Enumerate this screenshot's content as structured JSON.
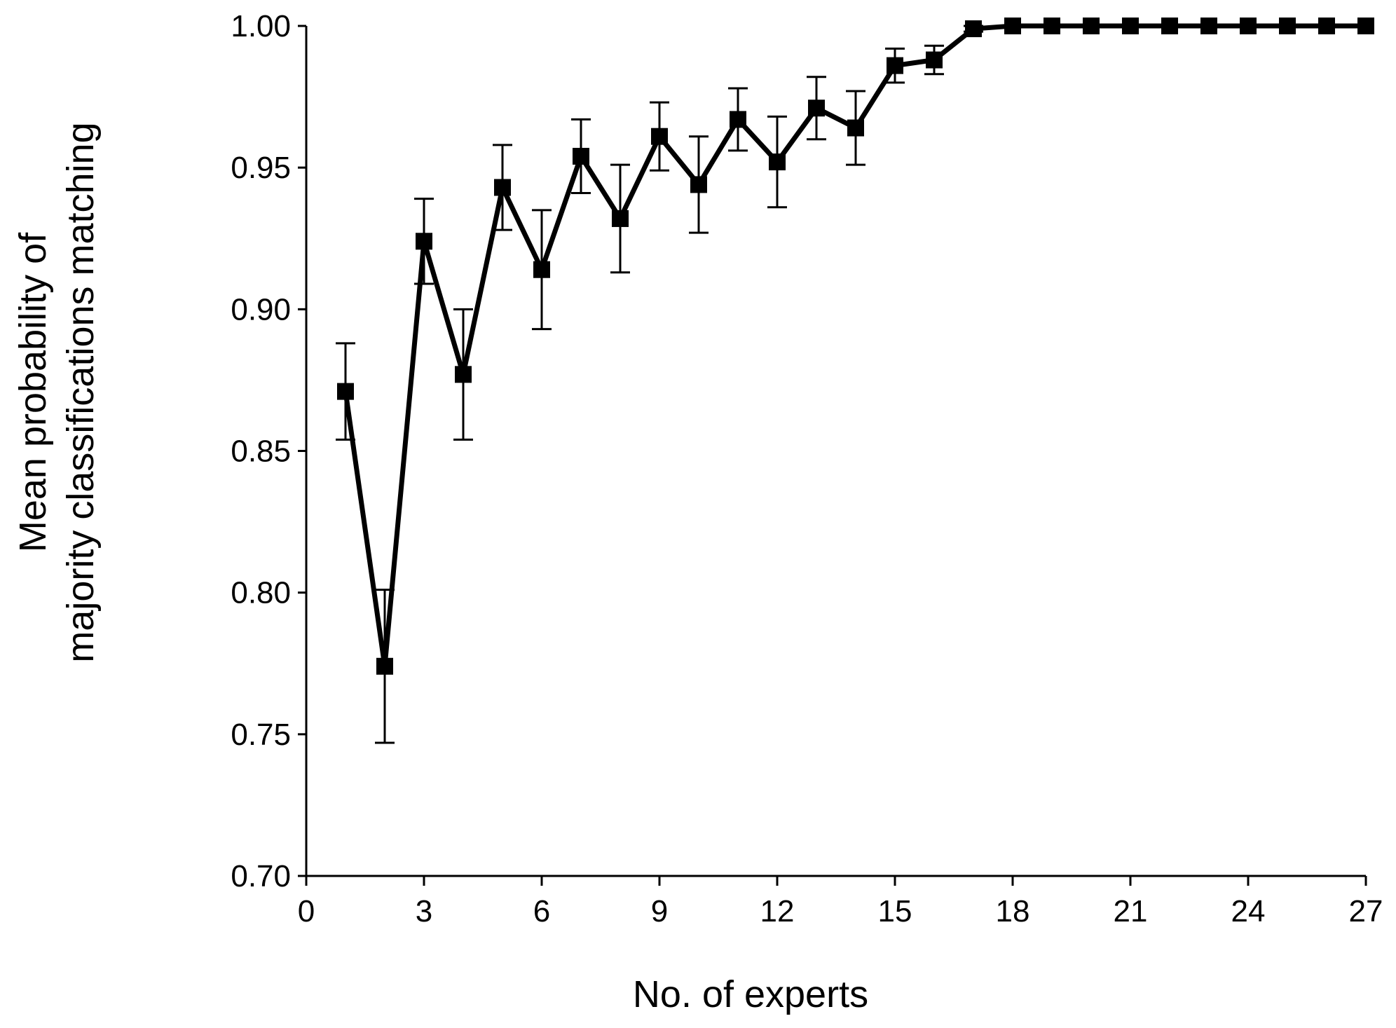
{
  "chart_data": {
    "type": "line",
    "title": "",
    "xlabel": "No. of experts",
    "ylabel_lines": [
      "Mean probability of",
      "majority classifications  matching"
    ],
    "xlim": [
      0,
      27
    ],
    "ylim": [
      0.7,
      1.0
    ],
    "x_ticks": [
      0,
      3,
      6,
      9,
      12,
      15,
      18,
      21,
      24,
      27
    ],
    "x_tick_labels": [
      "0",
      "3",
      "6",
      "9",
      "12",
      "15",
      "18",
      "21",
      "24",
      "27"
    ],
    "y_ticks": [
      0.7,
      0.75,
      0.8,
      0.85,
      0.9,
      0.95,
      1.0
    ],
    "y_tick_labels": [
      "0.70",
      "0.75",
      "0.80",
      "0.85",
      "0.90",
      "0.95",
      "1.00"
    ],
    "grid": false,
    "legend": "none",
    "series": [
      {
        "color": "#000000",
        "marker": "square",
        "x": [
          1,
          2,
          3,
          4,
          5,
          6,
          7,
          8,
          9,
          10,
          11,
          12,
          13,
          14,
          15,
          16,
          17,
          18,
          19,
          20,
          21,
          22,
          23,
          24,
          25,
          26,
          27
        ],
        "y": [
          0.871,
          0.774,
          0.924,
          0.877,
          0.943,
          0.914,
          0.954,
          0.932,
          0.961,
          0.944,
          0.967,
          0.952,
          0.971,
          0.964,
          0.986,
          0.988,
          0.999,
          1.0,
          1.0,
          1.0,
          1.0,
          1.0,
          1.0,
          1.0,
          1.0,
          1.0,
          1.0
        ],
        "err": [
          0.017,
          0.027,
          0.015,
          0.023,
          0.015,
          0.021,
          0.013,
          0.019,
          0.012,
          0.017,
          0.011,
          0.016,
          0.011,
          0.013,
          0.006,
          0.005,
          0.001,
          0,
          0,
          0,
          0,
          0,
          0,
          0,
          0,
          0,
          0
        ]
      }
    ]
  }
}
